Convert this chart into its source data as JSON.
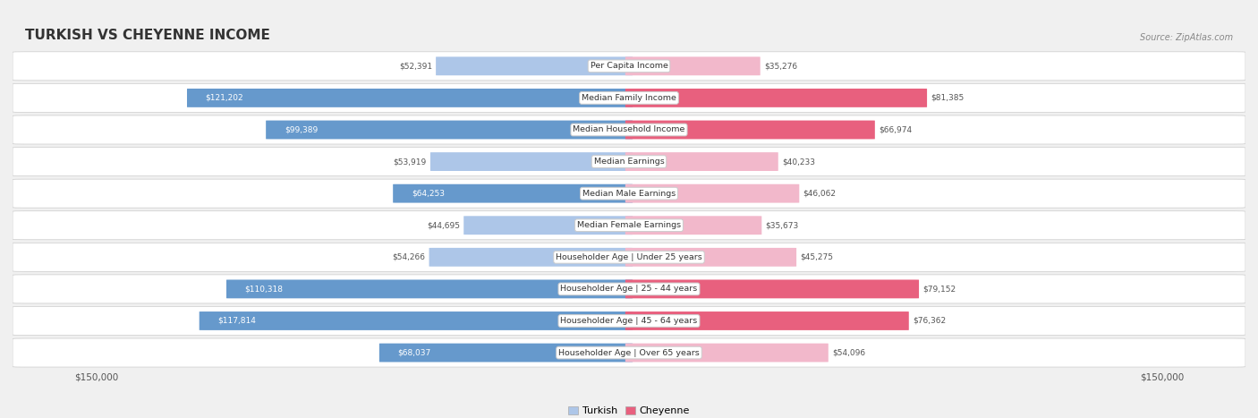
{
  "title": "TURKISH VS CHEYENNE INCOME",
  "source": "Source: ZipAtlas.com",
  "categories": [
    "Per Capita Income",
    "Median Family Income",
    "Median Household Income",
    "Median Earnings",
    "Median Male Earnings",
    "Median Female Earnings",
    "Householder Age | Under 25 years",
    "Householder Age | 25 - 44 years",
    "Householder Age | 45 - 64 years",
    "Householder Age | Over 65 years"
  ],
  "turkish_values": [
    52391,
    121202,
    99389,
    53919,
    64253,
    44695,
    54266,
    110318,
    117814,
    68037
  ],
  "cheyenne_values": [
    35276,
    81385,
    66974,
    40233,
    46062,
    35673,
    45275,
    79152,
    76362,
    54096
  ],
  "turkish_labels": [
    "$52,391",
    "$121,202",
    "$99,389",
    "$53,919",
    "$64,253",
    "$44,695",
    "$54,266",
    "$110,318",
    "$117,814",
    "$68,037"
  ],
  "cheyenne_labels": [
    "$35,276",
    "$81,385",
    "$66,974",
    "$40,233",
    "$46,062",
    "$35,673",
    "$45,275",
    "$79,152",
    "$76,362",
    "$54,096"
  ],
  "turkish_color_light": "#adc6e8",
  "turkish_color_dark": "#6699cc",
  "cheyenne_color_light": "#f2b8cb",
  "cheyenne_color_dark": "#e8607e",
  "max_value": 150000,
  "background_color": "#f0f0f0",
  "row_bg_color": "#ffffff",
  "row_alt_color": "#ebebeb",
  "legend_turkish": "Turkish",
  "legend_cheyenne": "Cheyenne",
  "xlabel_left": "$150,000",
  "xlabel_right": "$150,000",
  "turkish_threshold": 60000,
  "label_inside_color": "#ffffff",
  "label_outside_color": "#555555"
}
